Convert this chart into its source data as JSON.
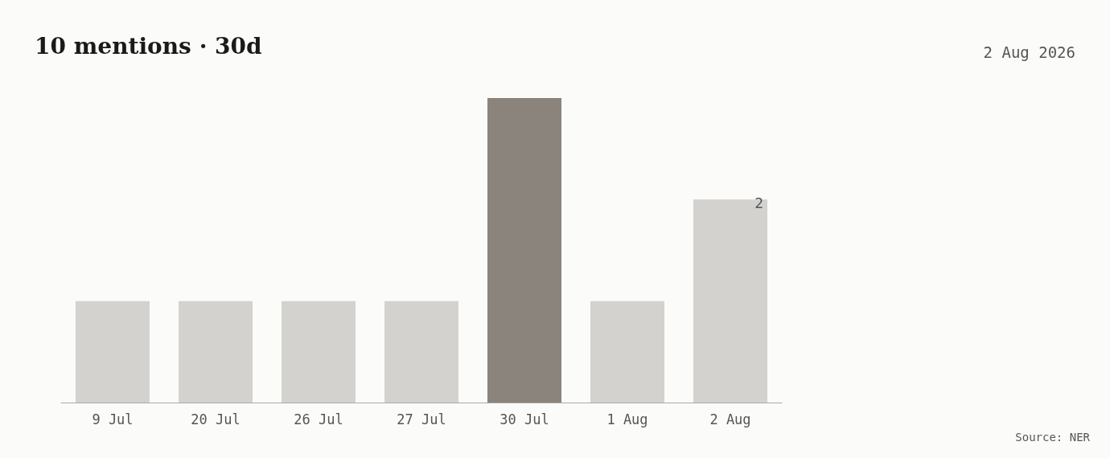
{
  "chart_data": {
    "type": "bar",
    "title": "10 mentions · 30d",
    "subtitle": "2 Aug 2026",
    "categories": [
      "9 Jul",
      "20 Jul",
      "26 Jul",
      "27 Jul",
      "30 Jul",
      "1 Aug",
      "2 Aug"
    ],
    "values": [
      1,
      1,
      1,
      1,
      3,
      1,
      2
    ],
    "colors": [
      "#d3d2cf",
      "#d3d2cf",
      "#d3d2cf",
      "#d3d2cf",
      "#8a847c",
      "#d3d2cf",
      "#d3d2cf"
    ],
    "value_labels": [
      null,
      null,
      null,
      null,
      null,
      null,
      "2"
    ],
    "annotations": [
      "Source: NER"
    ]
  }
}
